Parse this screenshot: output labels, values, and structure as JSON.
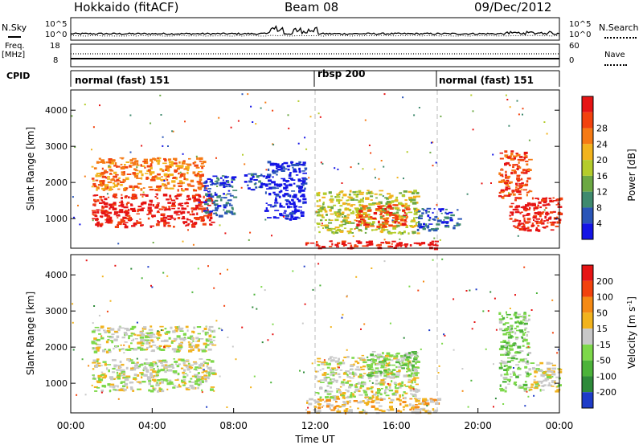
{
  "header": {
    "station": "Hokkaido (fitACF)",
    "beam": "Beam 08",
    "date": "09/Dec/2012"
  },
  "noise_panel": {
    "left_label": "N.Sky",
    "right_label": "N.Search",
    "tick_top": "10^5",
    "tick_bottom": "10^0"
  },
  "freq_panel": {
    "left_label": "Freq.",
    "left_unit": "[MHz]",
    "right_label": "Nave",
    "left_ticks": [
      "18",
      "8"
    ],
    "right_ticks": [
      "60",
      "0"
    ]
  },
  "cpid_panel": {
    "label": "CPID",
    "segments": [
      {
        "label": "normal (fast) 151",
        "start_hour": 0,
        "end_hour": 12
      },
      {
        "label": "rbsp 200",
        "start_hour": 12,
        "end_hour": 18
      },
      {
        "label": "normal (fast) 151",
        "start_hour": 18,
        "end_hour": 24
      }
    ]
  },
  "chart_data": [
    {
      "type": "heatmap",
      "name": "power",
      "ylabel": "Slant Range [km]",
      "yticks": [
        1000,
        2000,
        3000,
        4000
      ],
      "ylim": [
        180,
        4560
      ],
      "xlim": [
        0,
        24
      ],
      "colorbar": {
        "label": "Power [dB]",
        "ticks": [
          "4",
          "8",
          "12",
          "16",
          "20",
          "24",
          "28"
        ],
        "colors": [
          "#1414e6",
          "#2a55b8",
          "#3f8a6e",
          "#6ca843",
          "#b4cc2b",
          "#f2b31d",
          "#f57a14",
          "#f2420e",
          "#e61414"
        ]
      },
      "regions": [
        {
          "x0": 1.0,
          "x1": 7.0,
          "y0": 800,
          "y1": 1700,
          "level": 8
        },
        {
          "x0": 1.0,
          "x1": 6.5,
          "y0": 1800,
          "y1": 2700,
          "level": 6
        },
        {
          "x0": 6.5,
          "x1": 8.0,
          "y0": 1100,
          "y1": 2200,
          "level": 1
        },
        {
          "x0": 8.5,
          "x1": 9.5,
          "y0": 1800,
          "y1": 2300,
          "level": 1
        },
        {
          "x0": 9.5,
          "x1": 11.5,
          "y0": 1000,
          "y1": 2600,
          "level": 0
        },
        {
          "x0": 11.5,
          "x1": 18.0,
          "y0": 200,
          "y1": 400,
          "level": 8
        },
        {
          "x0": 12.0,
          "x1": 17.0,
          "y0": 600,
          "y1": 1800,
          "level": 4
        },
        {
          "x0": 14.0,
          "x1": 16.5,
          "y0": 800,
          "y1": 1400,
          "level": 7
        },
        {
          "x0": 17.0,
          "x1": 19.0,
          "y0": 700,
          "y1": 1300,
          "level": 1
        },
        {
          "x0": 21.5,
          "x1": 24.0,
          "y0": 700,
          "y1": 1600,
          "level": 8
        },
        {
          "x0": 21.0,
          "x1": 22.5,
          "y0": 1600,
          "y1": 2900,
          "level": 7
        }
      ]
    },
    {
      "type": "heatmap",
      "name": "velocity",
      "ylabel": "Slant Range [km]",
      "xlabel": "Time UT",
      "xticks": [
        "00:00",
        "04:00",
        "08:00",
        "12:00",
        "16:00",
        "20:00",
        "00:00"
      ],
      "yticks": [
        1000,
        2000,
        3000,
        4000
      ],
      "ylim": [
        180,
        4560
      ],
      "xlim": [
        0,
        24
      ],
      "colorbar": {
        "label": "Velocity [m s",
        "label_sup": "-1",
        "label_end": "]",
        "ticks": [
          "200",
          "100",
          "50",
          "15",
          "-15",
          "-50",
          "-100",
          "-200"
        ],
        "colors": [
          "#1e3cc8",
          "#2e8a3a",
          "#4cb33a",
          "#7dd84a",
          "#c8c8c8",
          "#f2b31d",
          "#f58a14",
          "#f2420e",
          "#e61414"
        ]
      },
      "regions": [
        {
          "x0": 1.0,
          "x1": 7.0,
          "y0": 800,
          "y1": 1700,
          "level": 4
        },
        {
          "x0": 1.0,
          "x1": 7.0,
          "y0": 1900,
          "y1": 2600,
          "level": 4
        },
        {
          "x0": 11.5,
          "x1": 18.0,
          "y0": 200,
          "y1": 600,
          "level": 5
        },
        {
          "x0": 12.0,
          "x1": 17.0,
          "y0": 600,
          "y1": 1800,
          "level": 4
        },
        {
          "x0": 14.5,
          "x1": 17.0,
          "y0": 1200,
          "y1": 1900,
          "level": 3
        },
        {
          "x0": 21.0,
          "x1": 22.5,
          "y0": 800,
          "y1": 3000,
          "level": 3
        },
        {
          "x0": 22.5,
          "x1": 24.0,
          "y0": 800,
          "y1": 1600,
          "level": 4
        }
      ]
    }
  ]
}
